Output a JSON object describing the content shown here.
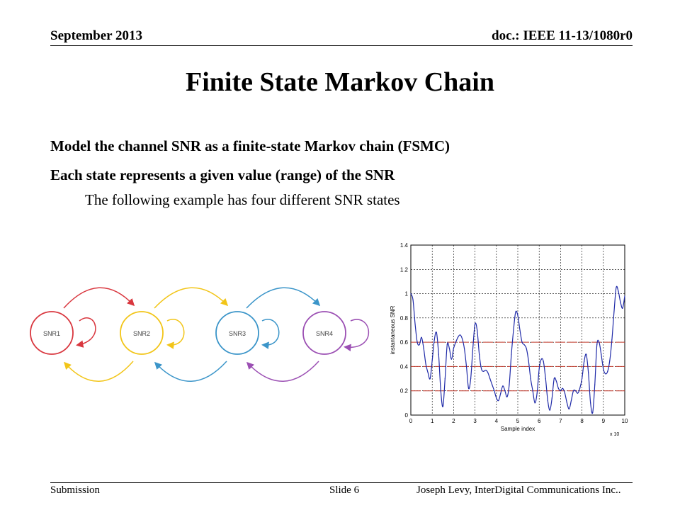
{
  "header": {
    "date": "September 2013",
    "doc_id": "doc.: IEEE 11-13/1080r0"
  },
  "slide": {
    "title": "Finite State Markov Chain",
    "bullets": [
      "Model the channel SNR as a finite-state Markov chain (FSMC)",
      "Each state represents a given value (range) of the SNR"
    ],
    "sub_bullet": "The following example has four different SNR states"
  },
  "diagram": {
    "states": [
      {
        "label": "SNR1",
        "color": "#d9373f"
      },
      {
        "label": "SNR2",
        "color": "#f2c518"
      },
      {
        "label": "SNR3",
        "color": "#3b95c9"
      },
      {
        "label": "SNR4",
        "color": "#9b4fb3"
      }
    ]
  },
  "chart_data": {
    "type": "line",
    "ylabel": "instantaneous SNR",
    "xlabel": "Sample index",
    "x_multiplier_label": "x 10",
    "xlim": [
      0,
      10
    ],
    "ylim": [
      0,
      1.4
    ],
    "x_ticks": [
      "0",
      "0.5",
      "1",
      "1.5",
      "2",
      "2.5",
      "3",
      "3.5",
      "4",
      "4.5",
      "5",
      "5.5",
      "6",
      "6.5",
      "7",
      "7.5",
      "8",
      "8.5",
      "9",
      "9.5",
      "10"
    ],
    "y_ticks": [
      "0",
      "0.2",
      "0.4",
      "0.6",
      "0.8",
      "1",
      "1.2",
      "1.4"
    ],
    "thresholds": [
      0.2,
      0.4,
      0.6
    ],
    "threshold_color": "#c0392b",
    "grid": true,
    "series": [
      {
        "color": "#1f2aa8",
        "x": [
          0,
          0.1,
          0.2,
          0.3,
          0.4,
          0.5,
          0.6,
          0.7,
          0.8,
          0.9,
          1.0,
          1.1,
          1.2,
          1.3,
          1.4,
          1.5,
          1.6,
          1.7,
          1.8,
          1.9,
          2.0,
          2.1,
          2.2,
          2.3,
          2.4,
          2.5,
          2.6,
          2.7,
          2.8,
          2.9,
          3.0,
          3.1,
          3.2,
          3.3,
          3.4,
          3.5,
          3.6,
          3.7,
          3.8,
          3.9,
          4.0,
          4.1,
          4.2,
          4.3,
          4.4,
          4.5,
          4.6,
          4.7,
          4.8,
          4.9,
          5.0,
          5.1,
          5.2,
          5.3,
          5.4,
          5.5,
          5.6,
          5.7,
          5.8,
          5.9,
          6.0,
          6.1,
          6.2,
          6.3,
          6.4,
          6.5,
          6.6,
          6.7,
          6.8,
          6.9,
          7.0,
          7.1,
          7.2,
          7.3,
          7.4,
          7.5,
          7.6,
          7.7,
          7.8,
          7.9,
          8.0,
          8.1,
          8.2,
          8.3,
          8.4,
          8.5,
          8.6,
          8.7,
          8.8,
          8.9,
          9.0,
          9.1,
          9.2,
          9.3,
          9.4,
          9.5,
          9.6,
          9.7,
          9.8,
          9.9,
          10.0
        ],
        "y": [
          1.0,
          0.95,
          0.75,
          0.6,
          0.58,
          0.64,
          0.55,
          0.42,
          0.35,
          0.3,
          0.45,
          0.62,
          0.68,
          0.5,
          0.2,
          0.07,
          0.3,
          0.58,
          0.55,
          0.46,
          0.55,
          0.6,
          0.64,
          0.66,
          0.63,
          0.55,
          0.4,
          0.22,
          0.3,
          0.55,
          0.75,
          0.7,
          0.5,
          0.38,
          0.36,
          0.37,
          0.35,
          0.3,
          0.25,
          0.2,
          0.14,
          0.12,
          0.18,
          0.24,
          0.2,
          0.15,
          0.25,
          0.5,
          0.7,
          0.85,
          0.82,
          0.7,
          0.6,
          0.58,
          0.55,
          0.45,
          0.3,
          0.2,
          0.1,
          0.18,
          0.38,
          0.46,
          0.44,
          0.3,
          0.12,
          0.04,
          0.14,
          0.3,
          0.28,
          0.22,
          0.2,
          0.22,
          0.18,
          0.1,
          0.05,
          0.12,
          0.2,
          0.2,
          0.18,
          0.22,
          0.3,
          0.44,
          0.5,
          0.35,
          0.1,
          0.02,
          0.25,
          0.58,
          0.6,
          0.5,
          0.38,
          0.34,
          0.36,
          0.45,
          0.62,
          0.85,
          1.05,
          1.02,
          0.93,
          0.88,
          0.98
        ]
      }
    ]
  },
  "footer": {
    "left": "Submission",
    "middle": "Slide 6",
    "right": "Joseph Levy, InterDigital Communications Inc.."
  }
}
